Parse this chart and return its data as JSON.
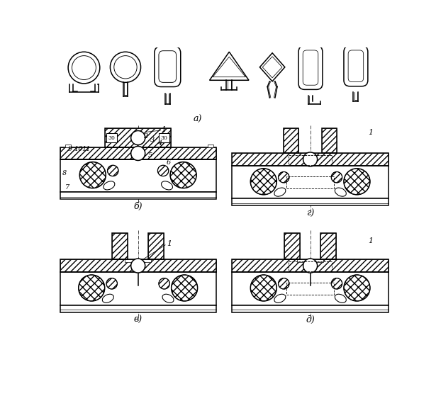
{
  "bg_color": "#ffffff",
  "label_a": "а)",
  "label_b": "б)",
  "label_v": "в)",
  "label_g": "г)",
  "label_d": "д)",
  "figsize": [
    6.15,
    5.59
  ],
  "dpi": 100,
  "lw_thick": 1.1,
  "lw_med": 0.75,
  "lw_thin": 0.5,
  "hatch": "////"
}
